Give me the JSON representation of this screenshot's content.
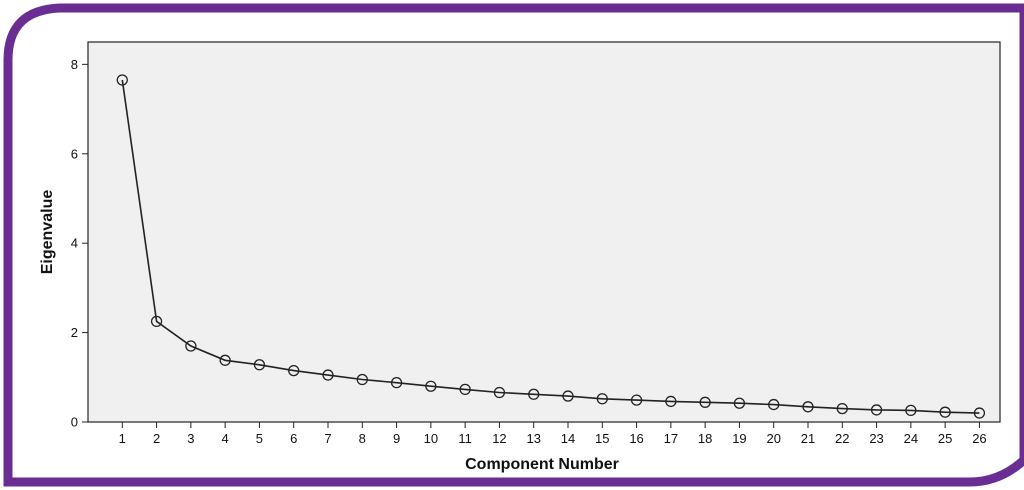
{
  "colors": {
    "frame_purple": "#6a2d91",
    "plot_background": "#f0f0f0",
    "line": "#222222",
    "marker_stroke": "#222222"
  },
  "chart_data": {
    "type": "line",
    "title": "",
    "xlabel": "Component Number",
    "ylabel": "Eigenvalue",
    "x": [
      1,
      2,
      3,
      4,
      5,
      6,
      7,
      8,
      9,
      10,
      11,
      12,
      13,
      14,
      15,
      16,
      17,
      18,
      19,
      20,
      21,
      22,
      23,
      24,
      25,
      26
    ],
    "series": [
      {
        "values": [
          7.65,
          2.25,
          1.7,
          1.38,
          1.28,
          1.15,
          1.05,
          0.95,
          0.88,
          0.8,
          0.73,
          0.66,
          0.62,
          0.58,
          0.52,
          0.49,
          0.46,
          0.44,
          0.42,
          0.39,
          0.34,
          0.3,
          0.27,
          0.26,
          0.22,
          0.2
        ],
        "marker": "open-circle"
      }
    ],
    "ylim": [
      0,
      8.5
    ],
    "xlim": [
      0,
      26.6
    ],
    "yticks": [
      0,
      2,
      4,
      6,
      8
    ],
    "xticks": [
      1,
      2,
      3,
      4,
      5,
      6,
      7,
      8,
      9,
      10,
      11,
      12,
      13,
      14,
      15,
      16,
      17,
      18,
      19,
      20,
      21,
      22,
      23,
      24,
      25,
      26
    ],
    "grid": false,
    "legend": "none"
  }
}
